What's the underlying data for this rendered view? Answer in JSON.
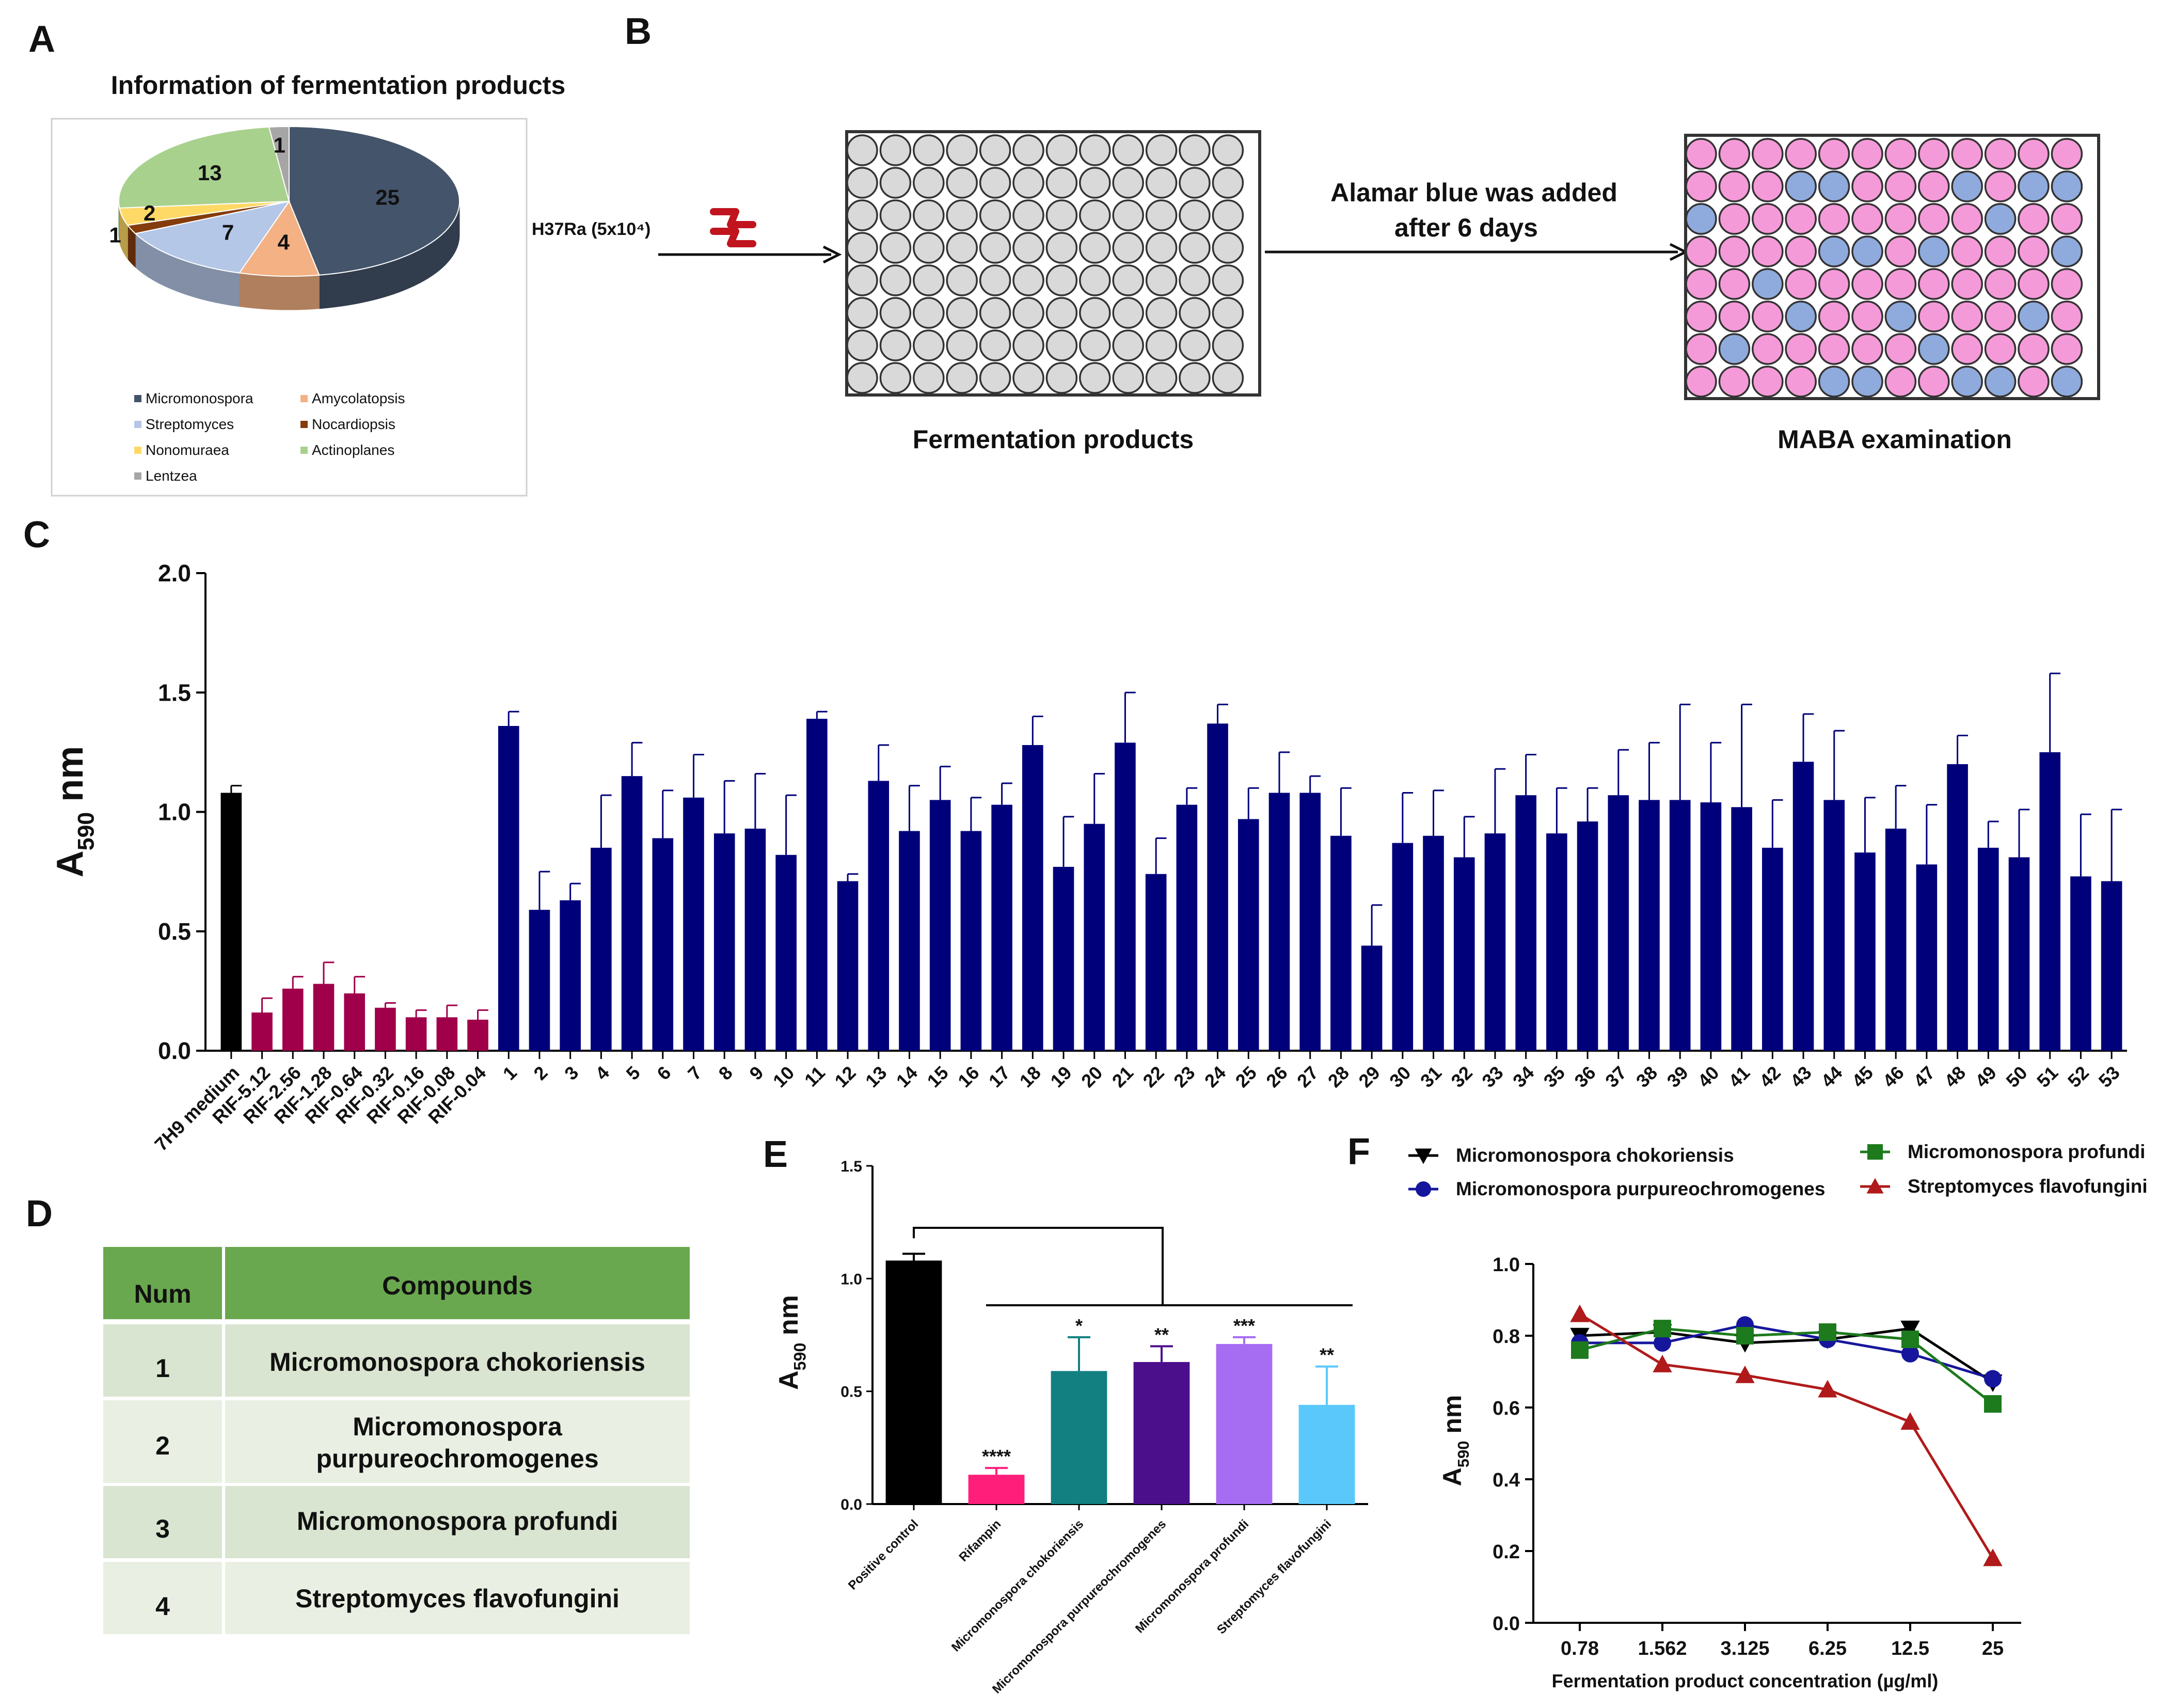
{
  "panels": {
    "A": "A",
    "B": "B",
    "C": "C",
    "D": "D",
    "E": "E",
    "F": "F"
  },
  "panelA": {
    "title": "Information of fermentation products",
    "legend": [
      {
        "name": "Micromonospora",
        "color": "#44546a"
      },
      {
        "name": "Amycolatopsis",
        "color": "#f4b183"
      },
      {
        "name": "Streptomyces",
        "color": "#b4c7e7"
      },
      {
        "name": "Nocardiopsis",
        "color": "#843c0c"
      },
      {
        "name": "Nonomuraea",
        "color": "#ffd966"
      },
      {
        "name": "Actinoplanes",
        "color": "#a9d18e"
      },
      {
        "name": "Lentzea",
        "color": "#a6a6a6"
      }
    ]
  },
  "panelB": {
    "strain_label": "H37Ra (5x10⁴)",
    "step_label_line1": "Alamar blue was added",
    "step_label_line2": "after 6 days",
    "plate1_label": "Fermentation products",
    "plate2_label": "MABA examination",
    "plate_rows": 8,
    "plate_cols": 12,
    "plate2_blue_wells": [
      [
        1,
        3
      ],
      [
        1,
        4
      ],
      [
        1,
        8
      ],
      [
        1,
        10
      ],
      [
        1,
        11
      ],
      [
        2,
        0
      ],
      [
        2,
        9
      ],
      [
        3,
        4
      ],
      [
        3,
        5
      ],
      [
        3,
        7
      ],
      [
        3,
        11
      ],
      [
        4,
        2
      ],
      [
        5,
        3
      ],
      [
        5,
        6
      ],
      [
        5,
        10
      ],
      [
        6,
        1
      ],
      [
        6,
        7
      ],
      [
        7,
        4
      ],
      [
        7,
        5
      ],
      [
        7,
        8
      ],
      [
        7,
        9
      ],
      [
        7,
        11
      ]
    ],
    "colors": {
      "empty": "#d9d9d9",
      "pink": "#f59ad8",
      "blue": "#8faadc"
    }
  },
  "panelD": {
    "headers": [
      "Num",
      "Compounds"
    ],
    "rows": [
      [
        "1",
        "Micromonospora chokoriensis"
      ],
      [
        "2",
        "Micromonospora\npurpureochromogenes"
      ],
      [
        "3",
        "Micromonospora profundi"
      ],
      [
        "4",
        "Streptomyces flavofungini"
      ]
    ],
    "colors": {
      "header": "#6aa84f",
      "row": "#d9e5d0",
      "row_alt": "#e9f0e3"
    }
  },
  "chart_data": [
    {
      "id": "A",
      "type": "pie",
      "title": "Information of fermentation products",
      "labels": [
        "Micromonospora",
        "Amycolatopsis",
        "Streptomyces",
        "Nocardiopsis",
        "Nonomuraea",
        "Actinoplanes",
        "Lentzea"
      ],
      "values": [
        25,
        4,
        7,
        1,
        2,
        13,
        1
      ],
      "colors": [
        "#44546a",
        "#f4b183",
        "#b4c7e7",
        "#843c0c",
        "#ffd966",
        "#a9d18e",
        "#a6a6a6"
      ]
    },
    {
      "id": "C",
      "type": "bar",
      "ylabel": "A590 nm",
      "ylabel_main": "A",
      "ylabel_sub": "590",
      "ylabel_unit": " nm",
      "ylim": [
        0,
        2.0
      ],
      "yticks": [
        "0.0",
        "0.5",
        "1.0",
        "1.5",
        "2.0"
      ],
      "ytick_values": [
        0,
        0.5,
        1.0,
        1.5,
        2.0
      ],
      "categories": [
        "7H9 medium",
        "RIF-5.12",
        "RIF-2.56",
        "RIF-1.28",
        "RIF-0.64",
        "RIF-0.32",
        "RIF-0.16",
        "RIF-0.08",
        "RIF-0.04",
        "1",
        "2",
        "3",
        "4",
        "5",
        "6",
        "7",
        "8",
        "9",
        "10",
        "11",
        "12",
        "13",
        "14",
        "15",
        "16",
        "17",
        "18",
        "19",
        "20",
        "21",
        "22",
        "23",
        "24",
        "25",
        "26",
        "27",
        "28",
        "29",
        "30",
        "31",
        "32",
        "33",
        "34",
        "35",
        "36",
        "37",
        "38",
        "39",
        "40",
        "41",
        "42",
        "43",
        "44",
        "45",
        "46",
        "47",
        "48",
        "49",
        "50",
        "51",
        "52",
        "53"
      ],
      "values": [
        1.08,
        0.16,
        0.26,
        0.28,
        0.24,
        0.18,
        0.14,
        0.14,
        0.13,
        1.36,
        0.59,
        0.63,
        0.85,
        1.15,
        0.89,
        1.06,
        0.91,
        0.93,
        0.82,
        1.39,
        0.71,
        1.13,
        0.92,
        1.05,
        0.92,
        1.03,
        1.28,
        0.77,
        0.95,
        1.29,
        0.74,
        1.03,
        1.37,
        0.97,
        1.08,
        1.08,
        0.9,
        0.44,
        0.87,
        0.9,
        0.81,
        0.91,
        1.07,
        0.91,
        0.96,
        1.07,
        1.05,
        1.05,
        1.04,
        1.02,
        0.85,
        1.21,
        1.05,
        0.83,
        0.93,
        0.78,
        1.2,
        0.85,
        0.81,
        1.25,
        0.73,
        0.71
      ],
      "errors": [
        0.03,
        0.06,
        0.05,
        0.09,
        0.07,
        0.02,
        0.03,
        0.05,
        0.04,
        0.06,
        0.16,
        0.07,
        0.22,
        0.14,
        0.2,
        0.18,
        0.22,
        0.23,
        0.25,
        0.03,
        0.03,
        0.15,
        0.19,
        0.14,
        0.14,
        0.09,
        0.12,
        0.21,
        0.21,
        0.21,
        0.15,
        0.07,
        0.08,
        0.13,
        0.17,
        0.07,
        0.2,
        0.17,
        0.21,
        0.19,
        0.17,
        0.27,
        0.17,
        0.19,
        0.14,
        0.19,
        0.24,
        0.4,
        0.25,
        0.43,
        0.2,
        0.2,
        0.29,
        0.23,
        0.18,
        0.25,
        0.12,
        0.11,
        0.2,
        0.33,
        0.26,
        0.3
      ],
      "groups": [
        {
          "from": 0,
          "to": 0,
          "color": "#000000"
        },
        {
          "from": 1,
          "to": 8,
          "color": "#a0004a"
        },
        {
          "from": 9,
          "to": 61,
          "color": "#00007a"
        }
      ]
    },
    {
      "id": "E",
      "type": "bar",
      "ylabel": "A590 nm",
      "ylabel_main": "A",
      "ylabel_sub": "590",
      "ylabel_unit": " nm",
      "ylim": [
        0,
        1.5
      ],
      "yticks": [
        "0.0",
        "0.5",
        "1.0",
        "1.5"
      ],
      "ytick_values": [
        0,
        0.5,
        1.0,
        1.5
      ],
      "categories": [
        "Positive control",
        "Rifampin",
        "Micromonospora chokoriensis",
        "Micromonospora purpureochromogenes",
        "Micromonospora profundi",
        "Streptomyces flavofungini"
      ],
      "values": [
        1.08,
        0.13,
        0.59,
        0.63,
        0.71,
        0.44
      ],
      "errors": [
        0.03,
        0.03,
        0.15,
        0.07,
        0.03,
        0.17
      ],
      "significance": [
        "",
        "****",
        "*",
        "**",
        "***",
        "**"
      ],
      "colors": [
        "#000000",
        "#ff1f7a",
        "#128080",
        "#4b0f8c",
        "#a66cf2",
        "#5ac8fa"
      ]
    },
    {
      "id": "F",
      "type": "line",
      "xlabel": "Fermentation product concentration (µg/ml)",
      "ylabel": "A590 nm",
      "ylabel_main": "A",
      "ylabel_sub": "590",
      "ylabel_unit": " nm",
      "ylim": [
        0,
        1.0
      ],
      "yticks": [
        "0.0",
        "0.2",
        "0.4",
        "0.6",
        "0.8",
        "1.0"
      ],
      "ytick_values": [
        0,
        0.2,
        0.4,
        0.6,
        0.8,
        1.0
      ],
      "x": [
        "0.78",
        "1.562",
        "3.125",
        "6.25",
        "12.5",
        "25"
      ],
      "series": [
        {
          "name": "Micromonospora chokoriensis",
          "marker": "triangle-down",
          "color": "#000000",
          "values": [
            0.8,
            0.81,
            0.78,
            0.79,
            0.82,
            0.67
          ]
        },
        {
          "name": "Micromonospora purpureochromogenes",
          "marker": "circle",
          "color": "#16169c",
          "values": [
            0.78,
            0.78,
            0.83,
            0.79,
            0.75,
            0.68
          ]
        },
        {
          "name": "Micromonospora profundi",
          "marker": "square",
          "color": "#1d7a1d",
          "values": [
            0.76,
            0.82,
            0.8,
            0.81,
            0.79,
            0.61
          ]
        },
        {
          "name": "Streptomyces flavofungini",
          "marker": "triangle-up",
          "color": "#b01a1a",
          "values": [
            0.86,
            0.72,
            0.69,
            0.65,
            0.56,
            0.18
          ]
        }
      ]
    }
  ]
}
